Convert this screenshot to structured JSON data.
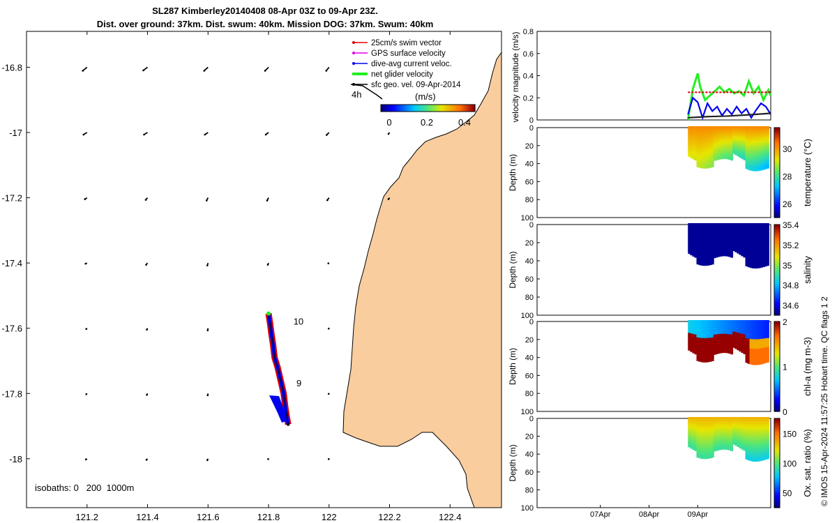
{
  "title": {
    "line1": "SL287 Kimberley20140408 08-Apr 03Z to 09-Apr 23Z.",
    "line2": "Dist. over ground: 37km. Dist. swum: 40km. Mission DOG: 37km. Swum: 40km"
  },
  "credit": "© IMOS 15-Apr-2024 11:57:25 Hobart time. QC flags 1  2",
  "colors": {
    "land": "#f9cd9e",
    "swim_vector": "#e00000",
    "gps_velocity": "#e000e0",
    "current": "#0000ee",
    "net_velocity": "#22ee22",
    "geo_vector": "#000000"
  },
  "chart_data": [
    {
      "type": "scatter",
      "name": "map",
      "xlabel": "",
      "ylabel": "",
      "xlim": [
        121.0,
        122.57
      ],
      "ylim": [
        -18.15,
        -16.69
      ],
      "xticks": [
        "121.2",
        "121.4",
        "121.6",
        "121.8",
        "122",
        "122.2",
        "122.4"
      ],
      "xtick_values": [
        121.2,
        121.4,
        121.6,
        121.8,
        122.0,
        122.2,
        122.4
      ],
      "yticks": [
        "-16.8",
        "-17",
        "-17.2",
        "-17.4",
        "-17.6",
        "-17.8",
        "-18"
      ],
      "ytick_values": [
        -16.8,
        -17.0,
        -17.2,
        -17.4,
        -17.6,
        -17.8,
        -18.0
      ],
      "legend": {
        "position": "top-right",
        "entries": [
          "25cm/s swim vector",
          "GPS surface velocity",
          "dive-avg current veloc.",
          "net glider velocity",
          "sfc geo. vel. 09-Apr-2014"
        ]
      },
      "colorbar": {
        "label": "(m/s)",
        "ticks": [
          "0",
          "0.2",
          "0.4"
        ],
        "range": [
          0,
          0.5
        ]
      },
      "scale_label": "4h",
      "day_labels": [
        {
          "text": "10",
          "lon": 121.85,
          "lat": -17.58
        },
        {
          "text": "9",
          "lon": 121.86,
          "lat": -17.77
        }
      ],
      "isobaths_label": "isobaths: 0   200  1000m",
      "glider_track": [
        [
          121.8,
          -17.555
        ],
        [
          121.805,
          -17.585
        ],
        [
          121.81,
          -17.62
        ],
        [
          121.815,
          -17.65
        ],
        [
          121.82,
          -17.69
        ],
        [
          121.83,
          -17.72
        ],
        [
          121.84,
          -17.76
        ],
        [
          121.85,
          -17.8
        ],
        [
          121.855,
          -17.84
        ],
        [
          121.86,
          -17.87
        ],
        [
          121.865,
          -17.895
        ]
      ],
      "geo_vectors": [
        {
          "lon": 121.2,
          "lat": -16.8,
          "u": -0.12,
          "v": -0.1
        },
        {
          "lon": 121.4,
          "lat": -16.8,
          "u": -0.12,
          "v": -0.09
        },
        {
          "lon": 121.6,
          "lat": -16.8,
          "u": -0.11,
          "v": -0.1
        },
        {
          "lon": 121.8,
          "lat": -16.8,
          "u": -0.1,
          "v": -0.1
        },
        {
          "lon": 122.0,
          "lat": -16.8,
          "u": -0.08,
          "v": -0.1
        },
        {
          "lon": 121.2,
          "lat": -17.0,
          "u": -0.1,
          "v": -0.06
        },
        {
          "lon": 121.4,
          "lat": -17.0,
          "u": -0.1,
          "v": -0.06
        },
        {
          "lon": 121.6,
          "lat": -17.0,
          "u": -0.09,
          "v": -0.06
        },
        {
          "lon": 121.8,
          "lat": -17.0,
          "u": -0.08,
          "v": -0.06
        },
        {
          "lon": 122.0,
          "lat": -17.0,
          "u": -0.07,
          "v": -0.07
        },
        {
          "lon": 122.2,
          "lat": -17.0,
          "u": -0.03,
          "v": -0.04
        },
        {
          "lon": 121.2,
          "lat": -17.2,
          "u": -0.06,
          "v": -0.04
        },
        {
          "lon": 121.4,
          "lat": -17.2,
          "u": -0.05,
          "v": -0.06
        },
        {
          "lon": 121.6,
          "lat": -17.2,
          "u": -0.04,
          "v": -0.08
        },
        {
          "lon": 121.8,
          "lat": -17.2,
          "u": -0.04,
          "v": -0.08
        },
        {
          "lon": 122.0,
          "lat": -17.2,
          "u": -0.05,
          "v": -0.07
        },
        {
          "lon": 122.2,
          "lat": -17.2,
          "u": -0.03,
          "v": -0.04
        },
        {
          "lon": 121.2,
          "lat": -17.4,
          "u": -0.04,
          "v": -0.02
        },
        {
          "lon": 121.4,
          "lat": -17.4,
          "u": -0.04,
          "v": -0.05
        },
        {
          "lon": 121.6,
          "lat": -17.4,
          "u": -0.02,
          "v": -0.07
        },
        {
          "lon": 121.8,
          "lat": -17.4,
          "u": -0.02,
          "v": -0.05
        },
        {
          "lon": 122.0,
          "lat": -17.4,
          "u": -0.02,
          "v": -0.01
        },
        {
          "lon": 121.2,
          "lat": -17.6,
          "u": -0.02,
          "v": -0.02
        },
        {
          "lon": 121.4,
          "lat": -17.6,
          "u": -0.02,
          "v": -0.04
        },
        {
          "lon": 121.6,
          "lat": -17.6,
          "u": -0.01,
          "v": -0.06
        },
        {
          "lon": 122.0,
          "lat": -17.6,
          "u": -0.01,
          "v": -0.01
        },
        {
          "lon": 121.2,
          "lat": -17.8,
          "u": -0.02,
          "v": -0.02
        },
        {
          "lon": 121.4,
          "lat": -17.8,
          "u": -0.02,
          "v": -0.04
        },
        {
          "lon": 121.6,
          "lat": -17.8,
          "u": -0.01,
          "v": -0.05
        },
        {
          "lon": 122.0,
          "lat": -17.8,
          "u": -0.01,
          "v": -0.01
        },
        {
          "lon": 121.2,
          "lat": -18.0,
          "u": -0.03,
          "v": -0.02
        },
        {
          "lon": 121.4,
          "lat": -18.0,
          "u": -0.03,
          "v": -0.03
        },
        {
          "lon": 121.6,
          "lat": -18.0,
          "u": -0.02,
          "v": -0.04
        },
        {
          "lon": 121.8,
          "lat": -18.0,
          "u": -0.01,
          "v": -0.01
        },
        {
          "lon": 122.0,
          "lat": -18.0,
          "u": -0.01,
          "v": -0.01
        }
      ]
    },
    {
      "type": "line",
      "name": "velocity",
      "ylabel": "velocity magnitude (m/s)",
      "ylim": [
        0,
        0.8
      ],
      "yticks": [
        "0",
        "0.2",
        "0.4",
        "0.6",
        "0.8"
      ],
      "ytick_values": [
        0,
        0.2,
        0.4,
        0.6,
        0.8
      ],
      "xlim": [
        0,
        4.8
      ],
      "series": [
        {
          "color": "#22ee22",
          "x": [
            3.1,
            3.2,
            3.3,
            3.35,
            3.45,
            3.55,
            3.65,
            3.75,
            3.85,
            3.95,
            4.05,
            4.15,
            4.25,
            4.35,
            4.45,
            4.55,
            4.65,
            4.75,
            4.8
          ],
          "y": [
            0.0,
            0.28,
            0.42,
            0.3,
            0.18,
            0.22,
            0.26,
            0.3,
            0.25,
            0.28,
            0.24,
            0.26,
            0.22,
            0.35,
            0.24,
            0.3,
            0.18,
            0.27,
            0.22
          ]
        },
        {
          "color": "#e00000",
          "dashed": true,
          "x": [
            3.1,
            4.8
          ],
          "y": [
            0.25,
            0.25
          ]
        },
        {
          "color": "#0000ee",
          "x": [
            3.1,
            3.2,
            3.3,
            3.4,
            3.5,
            3.6,
            3.7,
            3.8,
            3.9,
            4.0,
            4.1,
            4.2,
            4.3,
            4.4,
            4.5,
            4.6,
            4.7,
            4.8
          ],
          "y": [
            0.05,
            0.2,
            0.16,
            0.02,
            0.15,
            0.08,
            0.12,
            0.04,
            0.1,
            0.05,
            0.12,
            0.06,
            0.1,
            0.02,
            0.09,
            0.15,
            0.12,
            0.05
          ]
        },
        {
          "color": "#222222",
          "x": [
            3.1,
            3.5,
            3.9,
            4.3,
            4.8
          ],
          "y": [
            0.02,
            0.03,
            0.035,
            0.045,
            0.06
          ]
        }
      ]
    },
    {
      "type": "heatmap",
      "name": "temperature",
      "ylabel": "Depth (m)",
      "ylim": [
        100,
        0
      ],
      "yticks": [
        "0",
        "20",
        "40",
        "60",
        "80",
        "100"
      ],
      "ytick_values": [
        0,
        20,
        40,
        60,
        80,
        100
      ],
      "colorbar": {
        "label": "temperature (°C)",
        "range": [
          25,
          31.5
        ],
        "ticks": [
          "26",
          "28",
          "30"
        ],
        "tick_values": [
          26,
          28,
          30
        ]
      },
      "surface_value": 30.2,
      "bottom_value": 27.8
    },
    {
      "type": "heatmap",
      "name": "salinity",
      "ylabel": "Depth (m)",
      "ylim": [
        100,
        0
      ],
      "yticks": [
        "0",
        "20",
        "40",
        "60",
        "80",
        "100"
      ],
      "ytick_values": [
        0,
        20,
        40,
        60,
        80,
        100
      ],
      "colorbar": {
        "label": "salinity",
        "range": [
          34.5,
          35.4
        ],
        "ticks": [
          "34.6",
          "34.8",
          "35",
          "35.2",
          "35.4"
        ],
        "tick_values": [
          34.6,
          34.8,
          35.0,
          35.2,
          35.4
        ]
      },
      "surface_value": 34.5,
      "bottom_value": 34.5
    },
    {
      "type": "heatmap",
      "name": "chl-a",
      "ylabel": "Depth (m)",
      "ylim": [
        100,
        0
      ],
      "yticks": [
        "0",
        "20",
        "40",
        "60",
        "80",
        "100"
      ],
      "ytick_values": [
        0,
        20,
        40,
        60,
        80,
        100
      ],
      "colorbar": {
        "label": "chl-a (mg m-3)",
        "range": [
          0,
          2
        ],
        "ticks": [
          "0",
          "1",
          "2"
        ],
        "tick_values": [
          0,
          1,
          2
        ]
      },
      "surface_value": 0.7,
      "bottom_value": 2.0
    },
    {
      "type": "heatmap",
      "name": "oxygen",
      "ylabel": "Depth (m)",
      "ylim": [
        100,
        0
      ],
      "yticks": [
        "0",
        "20",
        "40",
        "60",
        "80",
        "100"
      ],
      "ytick_values": [
        0,
        20,
        40,
        60,
        80,
        100
      ],
      "xticks": [
        "07Apr",
        "08Apr",
        "09Apr"
      ],
      "xtick_values": [
        1,
        2,
        3
      ],
      "colorbar": {
        "label": "Ox. sat. ratio (%)",
        "range": [
          25,
          175
        ],
        "ticks": [
          "50",
          "100",
          "150"
        ],
        "tick_values": [
          50,
          100,
          150
        ]
      },
      "surface_value": 135,
      "bottom_value": 100
    }
  ]
}
